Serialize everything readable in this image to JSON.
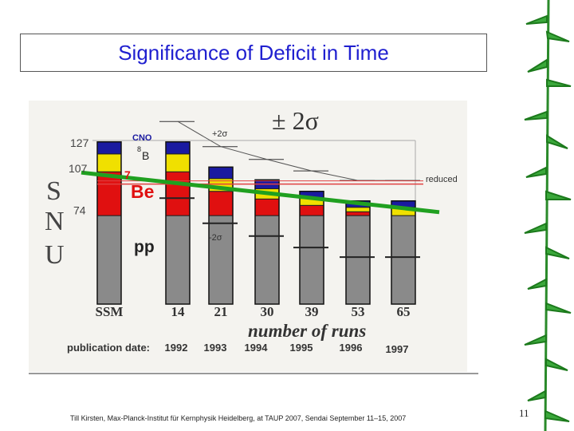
{
  "slide": {
    "title": "Significance of Deficit in Time",
    "footer": "Till Kirsten, Max-Planck-Institut für Kernphysik Heidelberg, at TAUP 2007, Sendai September 11–15, 2007",
    "page_number": "11"
  },
  "colors": {
    "title": "#2020d0",
    "pp": "#8a8a8a",
    "be7": "#e01010",
    "b8": "#f0e000",
    "cno": "#1a1aa0",
    "trend": "#20a020",
    "reduced_line": "#e04040"
  },
  "chart_data": {
    "type": "bar",
    "ylabel": "S N U",
    "ylabel_letters": [
      "S",
      "N",
      "U"
    ],
    "y_ticks": [
      "127",
      "107",
      "74"
    ],
    "sigma_label": "± 2σ",
    "plus_2sigma_label": "+2σ",
    "minus_2sigma_label": "-2σ",
    "reduced_label": "reduced",
    "series_labels": {
      "cno": "CNO",
      "b8_prefix": "8",
      "b8": "B",
      "be7_prefix": "7",
      "be7": "Be",
      "pp": "pp"
    },
    "categories": [
      "SSM",
      "14",
      "21",
      "30",
      "39",
      "53",
      "65"
    ],
    "xlabel": "number of runs",
    "publication_label": "publication date:",
    "publication_dates": [
      "1992",
      "1993",
      "1994",
      "1995",
      "1996",
      "1997"
    ],
    "ylim": [
      0,
      140
    ],
    "series": [
      {
        "name": "pp",
        "values": [
          69.3,
          69.3,
          69.3,
          69.3,
          69.3,
          69.3,
          69.3
        ]
      },
      {
        "name": "7Be",
        "values": [
          34.3,
          34.3,
          19.0,
          13.0,
          8.0,
          3.0,
          0.0
        ]
      },
      {
        "name": "8B",
        "values": [
          14.0,
          14.0,
          10.0,
          8.0,
          5.5,
          3.5,
          6.5
        ]
      },
      {
        "name": "CNO",
        "values": [
          9.4,
          9.4,
          9.0,
          7.0,
          5.5,
          5.0,
          5.0
        ]
      }
    ],
    "totals": [
      127,
      127,
      107.3,
      97.3,
      88.3,
      80.8,
      80.8
    ],
    "reduced_level": 94,
    "trend_line": {
      "start": 103,
      "end": 72
    }
  }
}
